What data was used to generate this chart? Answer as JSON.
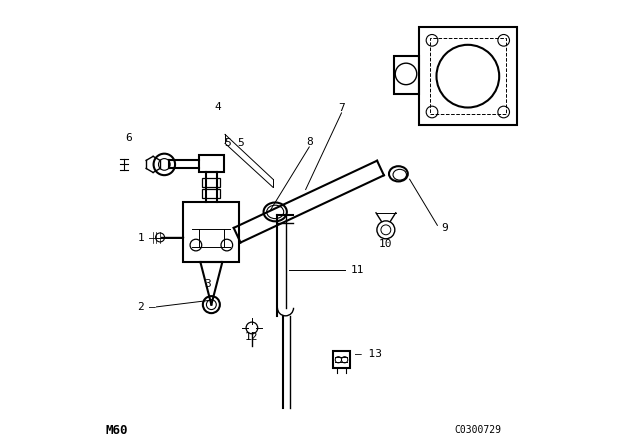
{
  "bg_color": "#ffffff",
  "line_color": "#000000",
  "bottom_left_text": "M60",
  "bottom_right_text": "C0300729"
}
